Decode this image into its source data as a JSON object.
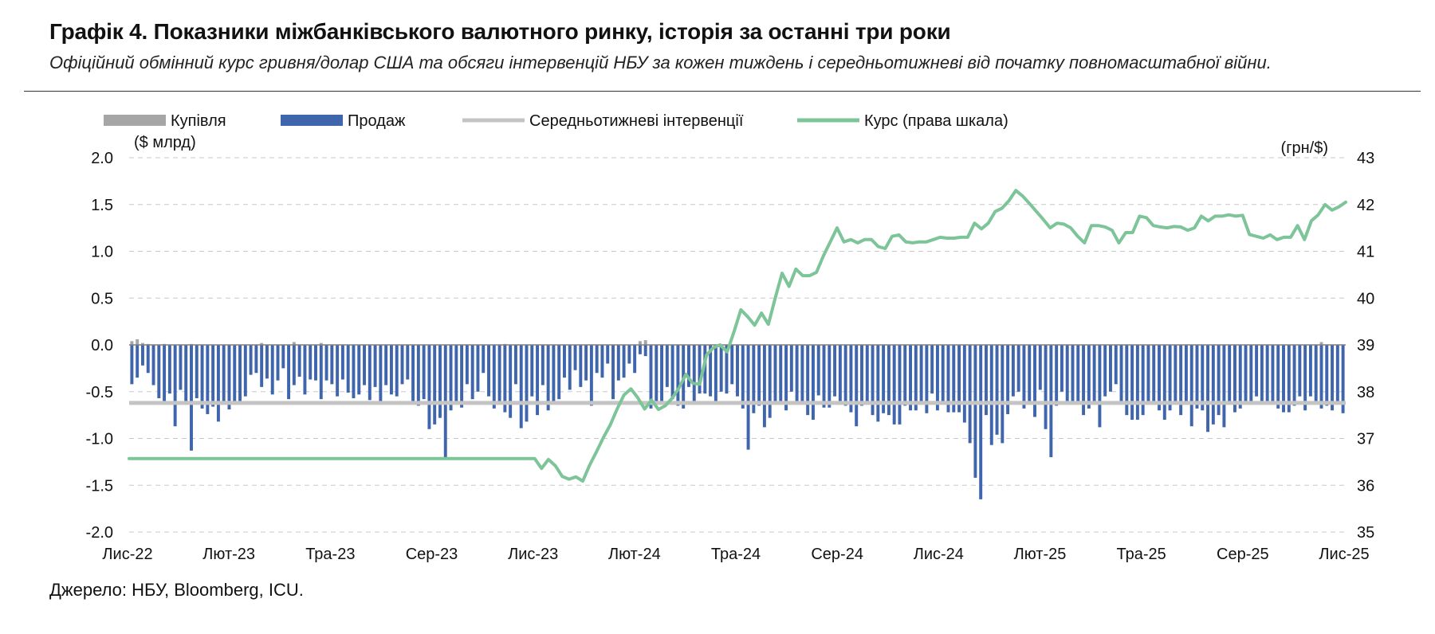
{
  "header": {
    "title": "Графік 4. Показники міжбанківського валютного ринку, історія за останні три роки",
    "subtitle": "Офіційний обмінний курс гривня/долар США та обсяги інтервенцій НБУ за кожен тиждень і середньотижневі від початку повномасштабної війни."
  },
  "source": "Джерело: НБУ, Bloomberg, ICU.",
  "chart_data": {
    "type": "bar",
    "legend_position": "top",
    "grid": "horizontal dashed",
    "colors": {
      "buy": "#a6a6a6",
      "sell": "#3f65ad",
      "avg": "#c4c4c4",
      "rate": "#7dc499"
    },
    "legend": [
      {
        "key": "buy",
        "label": "Купівля"
      },
      {
        "key": "sell",
        "label": "Продаж"
      },
      {
        "key": "avg",
        "label": "Середньотижневі інтервенції"
      },
      {
        "key": "rate",
        "label": "Курс (права шкала)"
      }
    ],
    "y_left": {
      "unit": "($ млрд)",
      "min": -2.0,
      "max": 2.0,
      "ticks": [
        "2.0",
        "1.5",
        "1.0",
        "0.5",
        "0.0",
        "-0.5",
        "-1.0",
        "-1.5",
        "-2.0"
      ]
    },
    "y_right": {
      "unit": "(грн/$)",
      "min": 35,
      "max": 43,
      "ticks": [
        "43",
        "42",
        "41",
        "40",
        "39",
        "38",
        "37",
        "36",
        "35"
      ]
    },
    "x_labels": [
      "Лис-22",
      "Лют-23",
      "Тра-23",
      "Сер-23",
      "Лис-23",
      "Лют-24",
      "Тра-24",
      "Сер-24",
      "Лис-24",
      "Лют-25",
      "Тра-25",
      "Сер-25",
      "Лис-25"
    ],
    "average_intervention": -0.62,
    "series": [
      {
        "name": "Купівля",
        "values": [
          0.04,
          0.06,
          0.02,
          0.01,
          0,
          0,
          0.01,
          0,
          0,
          0,
          0,
          0.01,
          0,
          0,
          0,
          0,
          0,
          0,
          0,
          0,
          0,
          0,
          0,
          0,
          0.02,
          0,
          0,
          0,
          0,
          0,
          0.03,
          0,
          0,
          0,
          0,
          0.02,
          0,
          0,
          0,
          0,
          0,
          0,
          0,
          0,
          0,
          0,
          0,
          0,
          0,
          0,
          0,
          0,
          0,
          0,
          0,
          0,
          0,
          0,
          0,
          0,
          0,
          0,
          0,
          0,
          0,
          0,
          0,
          0,
          0,
          0.01,
          0,
          0,
          0,
          0,
          0,
          0,
          0,
          0,
          0,
          0,
          0,
          0,
          0,
          0,
          0,
          0,
          0,
          0,
          0,
          0,
          0,
          0,
          0,
          0,
          0.04,
          0.05,
          0,
          0,
          0,
          0,
          0,
          0,
          0,
          0,
          0,
          0,
          0,
          0,
          0,
          0,
          0,
          0,
          0,
          0,
          0,
          0,
          0,
          0,
          0,
          0,
          0,
          0,
          0,
          0,
          0,
          0,
          0,
          0,
          0,
          0,
          0,
          0,
          0,
          0,
          0,
          0,
          0,
          0,
          0,
          0,
          0,
          0,
          0,
          0,
          0,
          0,
          0,
          0,
          0,
          0,
          0,
          0,
          0,
          0,
          0,
          0,
          0,
          0,
          0,
          0,
          0,
          0,
          0,
          0,
          0,
          0,
          0,
          0,
          0,
          0,
          0,
          0,
          0,
          0,
          0,
          0,
          0,
          0,
          0,
          0,
          0,
          0,
          0,
          0,
          0,
          0,
          0,
          0,
          0,
          0,
          0,
          0,
          0,
          0,
          0,
          0,
          0,
          0,
          0,
          0,
          0,
          0,
          0,
          0,
          0,
          0,
          0,
          0,
          0,
          0,
          0,
          0,
          0,
          0,
          0,
          0,
          0,
          0,
          0,
          0,
          0.03,
          0
        ]
      },
      {
        "name": "Продаж",
        "values": [
          -0.42,
          -0.35,
          -0.22,
          -0.3,
          -0.43,
          -0.57,
          -0.6,
          -0.52,
          -0.87,
          -0.48,
          -0.64,
          -1.13,
          -0.57,
          -0.68,
          -0.74,
          -0.66,
          -0.82,
          -0.6,
          -0.69,
          -0.6,
          -0.6,
          -0.55,
          -0.32,
          -0.3,
          -0.45,
          -0.36,
          -0.53,
          -0.38,
          -0.25,
          -0.58,
          -0.43,
          -0.34,
          -0.53,
          -0.37,
          -0.38,
          -0.58,
          -0.38,
          -0.42,
          -0.55,
          -0.37,
          -0.51,
          -0.57,
          -0.53,
          -0.43,
          -0.59,
          -0.45,
          -0.62,
          -0.43,
          -0.53,
          -0.55,
          -0.42,
          -0.37,
          -0.6,
          -0.65,
          -0.58,
          -0.9,
          -0.85,
          -0.78,
          -1.2,
          -0.7,
          -0.6,
          -0.67,
          -0.42,
          -0.58,
          -0.5,
          -0.3,
          -0.55,
          -0.68,
          -0.6,
          -0.72,
          -0.78,
          -0.42,
          -0.89,
          -0.82,
          -0.55,
          -0.75,
          -0.43,
          -0.7,
          -0.6,
          -0.58,
          -0.35,
          -0.48,
          -0.27,
          -0.45,
          -0.38,
          -0.65,
          -0.3,
          -0.35,
          -0.2,
          -0.58,
          -0.38,
          -0.35,
          -0.2,
          -0.3,
          -0.1,
          -0.12,
          -0.68,
          -0.62,
          -0.6,
          -0.45,
          -0.58,
          -0.65,
          -0.68,
          -0.45,
          -0.6,
          -0.52,
          -0.52,
          -0.55,
          -0.6,
          -0.5,
          -0.52,
          -0.42,
          -0.55,
          -0.68,
          -1.12,
          -0.73,
          -0.65,
          -0.88,
          -0.78,
          -0.62,
          -0.6,
          -0.7,
          -0.5,
          -0.6,
          -0.62,
          -0.75,
          -0.8,
          -0.54,
          -0.67,
          -0.67,
          -0.55,
          -0.6,
          -0.65,
          -0.72,
          -0.87,
          -0.65,
          -0.6,
          -0.75,
          -0.82,
          -0.73,
          -0.75,
          -0.85,
          -0.85,
          -0.65,
          -0.7,
          -0.7,
          -0.62,
          -0.73,
          -0.52,
          -0.7,
          -0.62,
          -0.72,
          -0.72,
          -0.72,
          -0.83,
          -1.05,
          -1.42,
          -1.65,
          -0.75,
          -1.07,
          -0.96,
          -1.05,
          -0.74,
          -0.55,
          -0.5,
          -0.68,
          -0.62,
          -0.77,
          -0.48,
          -0.9,
          -1.2,
          -0.65,
          -0.5,
          -0.62,
          -0.6,
          -0.62,
          -0.75,
          -0.68,
          -0.62,
          -0.88,
          -0.55,
          -0.5,
          -0.42,
          -0.62,
          -0.75,
          -0.8,
          -0.8,
          -0.75,
          -0.6,
          -0.62,
          -0.7,
          -0.8,
          -0.7,
          -0.62,
          -0.75,
          -0.62,
          -0.87,
          -0.68,
          -0.7,
          -0.93,
          -0.85,
          -0.75,
          -0.88,
          -0.6,
          -0.72,
          -0.68,
          -0.6,
          -0.6,
          -0.55,
          -0.6,
          -0.6,
          -0.62,
          -0.68,
          -0.72,
          -0.72,
          -0.65,
          -0.55,
          -0.7,
          -0.55,
          -0.62,
          -0.68,
          -0.65,
          -0.7,
          -0.63,
          -0.73
        ]
      },
      {
        "name": "Курс (права шкала)",
        "values": [
          36.57,
          36.57,
          36.57,
          36.57,
          36.57,
          36.57,
          36.57,
          36.57,
          36.57,
          36.57,
          36.57,
          36.57,
          36.57,
          36.57,
          36.57,
          36.57,
          36.57,
          36.57,
          36.57,
          36.57,
          36.57,
          36.57,
          36.57,
          36.57,
          36.57,
          36.57,
          36.57,
          36.57,
          36.57,
          36.57,
          36.57,
          36.57,
          36.57,
          36.57,
          36.57,
          36.57,
          36.57,
          36.57,
          36.57,
          36.57,
          36.57,
          36.57,
          36.57,
          36.57,
          36.57,
          36.57,
          36.57,
          36.57,
          36.57,
          36.57,
          36.57,
          36.57,
          36.57,
          36.57,
          36.57,
          36.57,
          36.57,
          36.57,
          36.57,
          36.57,
          36.36,
          36.55,
          36.42,
          36.19,
          36.13,
          36.18,
          36.09,
          36.43,
          36.72,
          37.02,
          37.29,
          37.63,
          37.93,
          38.06,
          37.87,
          37.63,
          37.82,
          37.62,
          37.7,
          37.86,
          38.08,
          38.37,
          38.18,
          38.16,
          38.78,
          38.94,
          39.0,
          38.85,
          39.28,
          39.75,
          39.6,
          39.42,
          39.68,
          39.44,
          40.0,
          40.53,
          40.25,
          40.62,
          40.48,
          40.48,
          40.55,
          40.9,
          41.2,
          41.5,
          41.2,
          41.25,
          41.18,
          41.25,
          41.25,
          41.1,
          41.06,
          41.32,
          41.35,
          41.2,
          41.18,
          41.2,
          41.2,
          41.25,
          41.3,
          41.28,
          41.28,
          41.3,
          41.3,
          41.6,
          41.48,
          41.6,
          41.85,
          41.92,
          42.08,
          42.3,
          42.18,
          42.02,
          41.85,
          41.68,
          41.5,
          41.6,
          41.58,
          41.5,
          41.32,
          41.18,
          41.55,
          41.55,
          41.52,
          41.45,
          41.18,
          41.4,
          41.4,
          41.75,
          41.72,
          41.55,
          41.52,
          41.5,
          41.53,
          41.52,
          41.45,
          41.5,
          41.75,
          41.65,
          41.75,
          41.75,
          41.78,
          41.75,
          41.77,
          41.36,
          41.32,
          41.28,
          41.35,
          41.25,
          41.3,
          41.3,
          41.55,
          41.25,
          41.65,
          41.78,
          42.0,
          41.88,
          41.95,
          42.05
        ],
        "x_start_index": 0,
        "x_index_step": 1,
        "starts_at_bar": 0,
        "note": ""
      }
    ]
  }
}
